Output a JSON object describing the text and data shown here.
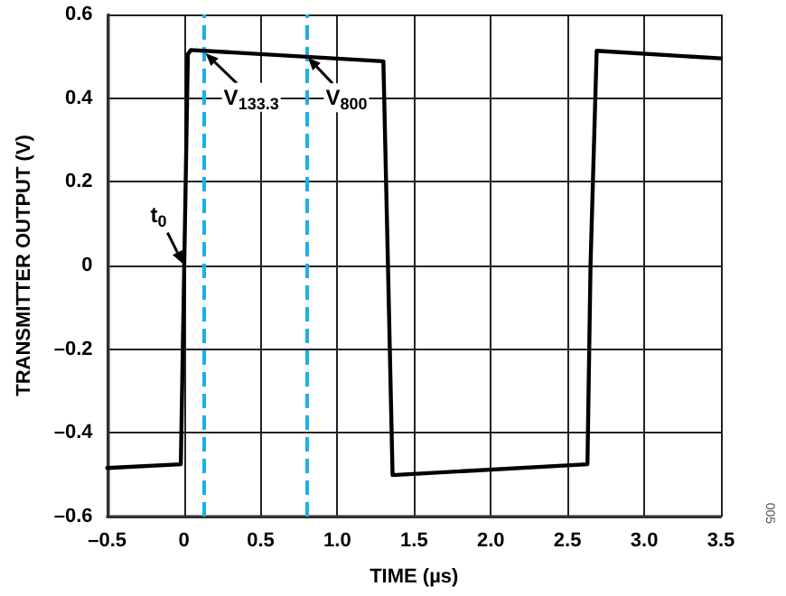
{
  "chart_data": {
    "type": "line",
    "xlabel": "TIME (µs)",
    "ylabel": "TRANSMITTER OUTPUT (V)",
    "series": [
      {
        "color": "#000000",
        "x": [
          -0.5,
          -0.02,
          0.026,
          0.045,
          1.3,
          1.33,
          1.36,
          2.63,
          2.65,
          2.69,
          3.5
        ],
        "values": [
          -0.484,
          -0.475,
          0.505,
          0.515,
          0.488,
          0,
          -0.501,
          -0.475,
          0,
          0.513,
          0.495
        ]
      }
    ],
    "xlim": [
      -0.5,
      3.5
    ],
    "xticks": [
      {
        "value": -0.5,
        "label": "–0.5"
      },
      0,
      0.5,
      {
        "value": 1,
        "label": "1.0"
      },
      1.5,
      {
        "value": 2,
        "label": "2.0"
      },
      2.5,
      {
        "value": 3,
        "label": "3.0"
      },
      3.5
    ],
    "ylim": [
      -0.6,
      0.6
    ],
    "yticks": [
      {
        "value": -0.6,
        "label": "–0.6"
      },
      {
        "value": -0.4,
        "label": "–0.4"
      },
      {
        "value": -0.2,
        "label": "–0.2"
      },
      0,
      0.2,
      0.4,
      0.6
    ],
    "ref_lines": [
      {
        "axis": "x",
        "value": 0.133,
        "color": "#1ab0ea",
        "line_style": "dashed"
      },
      {
        "axis": "x",
        "value": 0.8,
        "color": "#1ab0ea",
        "line_style": "dashed"
      }
    ],
    "annotations": [
      {
        "text": "t$_{0}$",
        "x": 0,
        "y": 0
      },
      {
        "text": "V$_{133.3}$",
        "x": 0.133,
        "y": 0.51
      },
      {
        "text": "V$_{800}$",
        "x": 0.8,
        "y": 0.5
      },
      "005"
    ],
    "grid": true,
    "marker": "none",
    "line_style": "solid"
  }
}
